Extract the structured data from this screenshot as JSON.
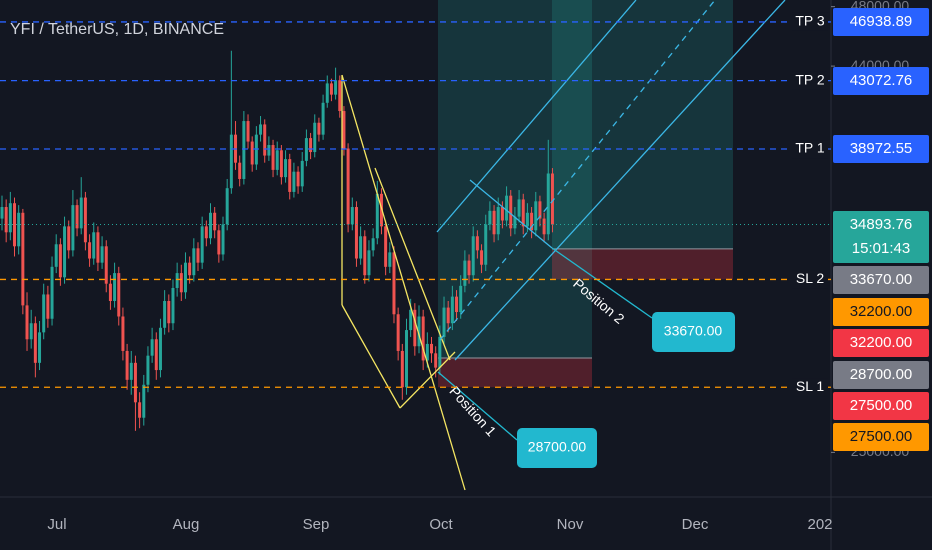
{
  "header": {
    "title": "YFI / TetherUS, 1D, BINANCE"
  },
  "chart_data": {
    "type": "candlestick",
    "log_scale": true,
    "ylim": [
      23660,
      48470
    ],
    "yticks": [
      {
        "value": 48000,
        "label": "48000.00"
      },
      {
        "value": 44000,
        "label": "44000.00"
      },
      {
        "value": 25000,
        "label": "25000.00"
      }
    ],
    "xticks": [
      "Jul",
      "Aug",
      "Sep",
      "Oct",
      "Nov",
      "Dec",
      "202"
    ],
    "up_color": "#26a69a",
    "down_color": "#ef5350",
    "candles": [
      [
        35200,
        36400,
        34600,
        35800
      ],
      [
        35800,
        36200,
        34000,
        34500
      ],
      [
        34500,
        36600,
        34100,
        36000
      ],
      [
        36000,
        36300,
        33300,
        33800
      ],
      [
        33800,
        35900,
        33400,
        35500
      ],
      [
        35500,
        35700,
        30600,
        31000
      ],
      [
        31000,
        31600,
        29000,
        29500
      ],
      [
        29500,
        30800,
        29100,
        30200
      ],
      [
        30200,
        30500,
        27900,
        28500
      ],
      [
        28500,
        30300,
        28200,
        29800
      ],
      [
        29800,
        32000,
        29500,
        31500
      ],
      [
        31500,
        31900,
        30000,
        30400
      ],
      [
        30400,
        33300,
        30100,
        32800
      ],
      [
        32800,
        34400,
        32500,
        33900
      ],
      [
        33900,
        34200,
        31900,
        32300
      ],
      [
        32300,
        35300,
        32000,
        34800
      ],
      [
        34800,
        35100,
        33200,
        33600
      ],
      [
        33600,
        36700,
        33300,
        35900
      ],
      [
        35900,
        36200,
        34300,
        34700
      ],
      [
        34700,
        37400,
        34400,
        36300
      ],
      [
        36300,
        36600,
        33600,
        34000
      ],
      [
        34000,
        34400,
        32800,
        33200
      ],
      [
        33200,
        35000,
        32900,
        34500
      ],
      [
        34500,
        34800,
        32600,
        33000
      ],
      [
        33000,
        34300,
        32700,
        33800
      ],
      [
        33800,
        34100,
        31600,
        32000
      ],
      [
        32000,
        32400,
        30800,
        31200
      ],
      [
        31200,
        33000,
        30900,
        32500
      ],
      [
        32500,
        32800,
        30100,
        30500
      ],
      [
        30500,
        30900,
        28600,
        29000
      ],
      [
        29000,
        29300,
        27400,
        27800
      ],
      [
        27800,
        29000,
        27200,
        28500
      ],
      [
        28500,
        28800,
        25800,
        26900
      ],
      [
        26900,
        27300,
        25900,
        26300
      ],
      [
        26300,
        28000,
        26000,
        27600
      ],
      [
        27600,
        29200,
        27300,
        28800
      ],
      [
        28800,
        30000,
        28500,
        29500
      ],
      [
        29500,
        29800,
        27800,
        28200
      ],
      [
        28200,
        30400,
        27900,
        30000
      ],
      [
        30000,
        31700,
        29700,
        31200
      ],
      [
        31200,
        31500,
        29800,
        30200
      ],
      [
        30200,
        32200,
        29900,
        31800
      ],
      [
        31800,
        33000,
        31400,
        32500
      ],
      [
        32500,
        32900,
        31200,
        31600
      ],
      [
        31600,
        33500,
        31300,
        33000
      ],
      [
        33000,
        33300,
        32000,
        32400
      ],
      [
        32400,
        34200,
        32100,
        33700
      ],
      [
        33700,
        34000,
        32600,
        33000
      ],
      [
        33000,
        35300,
        32700,
        34800
      ],
      [
        34800,
        35100,
        33800,
        34200
      ],
      [
        34200,
        36000,
        33900,
        35500
      ],
      [
        35500,
        35800,
        34200,
        34600
      ],
      [
        34600,
        34900,
        33000,
        33400
      ],
      [
        33400,
        35300,
        33100,
        34900
      ],
      [
        34900,
        37300,
        34600,
        36800
      ],
      [
        36800,
        45000,
        36500,
        39800
      ],
      [
        39800,
        40600,
        37800,
        38200
      ],
      [
        38200,
        38600,
        36900,
        37300
      ],
      [
        37300,
        41200,
        37000,
        40600
      ],
      [
        40600,
        41000,
        39000,
        39400
      ],
      [
        39400,
        39700,
        37700,
        38100
      ],
      [
        38100,
        40300,
        37800,
        39800
      ],
      [
        39800,
        40900,
        39400,
        40400
      ],
      [
        40400,
        40700,
        38200,
        38600
      ],
      [
        38600,
        39700,
        38300,
        39200
      ],
      [
        39200,
        39500,
        37400,
        37800
      ],
      [
        37800,
        39400,
        37500,
        38900
      ],
      [
        38900,
        39200,
        37000,
        37400
      ],
      [
        37400,
        38900,
        37100,
        38400
      ],
      [
        38400,
        38700,
        36200,
        36600
      ],
      [
        36600,
        38200,
        36300,
        37700
      ],
      [
        37700,
        38000,
        36500,
        36900
      ],
      [
        36900,
        38800,
        36600,
        38300
      ],
      [
        38300,
        40100,
        38000,
        39600
      ],
      [
        39600,
        39900,
        38400,
        38800
      ],
      [
        38800,
        41000,
        38500,
        40500
      ],
      [
        40500,
        40800,
        39400,
        39800
      ],
      [
        39800,
        42200,
        39500,
        41700
      ],
      [
        41700,
        43400,
        41400,
        42900
      ],
      [
        42900,
        43200,
        41800,
        42200
      ],
      [
        42200,
        43900,
        41900,
        43100
      ],
      [
        43100,
        43400,
        40800,
        41200
      ],
      [
        41200,
        41500,
        38600,
        39000
      ],
      [
        39000,
        39300,
        34500,
        34900
      ],
      [
        34900,
        36300,
        34600,
        35800
      ],
      [
        35800,
        36100,
        32800,
        33200
      ],
      [
        33200,
        34800,
        32900,
        34300
      ],
      [
        34300,
        34600,
        32000,
        32400
      ],
      [
        32400,
        34100,
        32100,
        33600
      ],
      [
        33600,
        34700,
        33300,
        34200
      ],
      [
        34200,
        37200,
        33900,
        36500
      ],
      [
        36500,
        36800,
        34400,
        34800
      ],
      [
        34800,
        35100,
        32400,
        32800
      ],
      [
        32800,
        34000,
        32500,
        33500
      ],
      [
        33500,
        33800,
        30200,
        30600
      ],
      [
        30600,
        30900,
        28600,
        29000
      ],
      [
        29000,
        29300,
        27000,
        27500
      ],
      [
        27500,
        30400,
        27200,
        29900
      ],
      [
        29900,
        31300,
        29600,
        30800
      ],
      [
        30800,
        31100,
        28800,
        29200
      ],
      [
        29200,
        31000,
        28900,
        30500
      ],
      [
        30500,
        30800,
        28200,
        28600
      ],
      [
        28600,
        29800,
        28300,
        29300
      ],
      [
        29300,
        29600,
        28500,
        28900
      ],
      [
        28900,
        29200,
        27900,
        28300
      ],
      [
        28300,
        30100,
        28000,
        29600
      ],
      [
        29600,
        31400,
        29300,
        30900
      ],
      [
        30900,
        31200,
        29800,
        30200
      ],
      [
        30200,
        31900,
        29900,
        31400
      ],
      [
        31400,
        31700,
        30300,
        30700
      ],
      [
        30700,
        32400,
        30400,
        31900
      ],
      [
        31900,
        33600,
        31600,
        33100
      ],
      [
        33100,
        33400,
        32000,
        32400
      ],
      [
        32400,
        34800,
        32100,
        34300
      ],
      [
        34300,
        34600,
        33200,
        33600
      ],
      [
        33600,
        33900,
        32500,
        32900
      ],
      [
        32900,
        35400,
        32600,
        34900
      ],
      [
        34900,
        36100,
        34600,
        35600
      ],
      [
        35600,
        35900,
        34000,
        34400
      ],
      [
        34400,
        36300,
        34100,
        35800
      ],
      [
        35800,
        36100,
        34700,
        35100
      ],
      [
        35100,
        36900,
        34800,
        36400
      ],
      [
        36400,
        36700,
        34300,
        34700
      ],
      [
        34700,
        35800,
        34400,
        35300
      ],
      [
        35300,
        36700,
        35000,
        36200
      ],
      [
        36200,
        36500,
        34400,
        34800
      ],
      [
        34800,
        36000,
        34500,
        35500
      ],
      [
        35500,
        35800,
        34200,
        34600
      ],
      [
        34600,
        36600,
        34300,
        36100
      ],
      [
        36100,
        36400,
        34800,
        35200
      ],
      [
        35200,
        35500,
        34000,
        34400
      ],
      [
        34400,
        39500,
        34100,
        37600
      ],
      [
        37600,
        37900,
        34500,
        34893.76
      ]
    ],
    "last": {
      "value": 34893.76,
      "countdown": "15:01:43",
      "color": "#26a69a"
    },
    "levels": [
      {
        "name": "TP 3",
        "value": 46938.89,
        "color": "#2962ff"
      },
      {
        "name": "TP 2",
        "value": 43072.76,
        "color": "#2962ff"
      },
      {
        "name": "TP 1",
        "value": 38972.55,
        "color": "#2962ff"
      },
      {
        "name": "SL 2",
        "value": 32200,
        "label": "32200.00",
        "color": "#ff9800"
      },
      {
        "name": "SL 1",
        "value": 27500,
        "label": "27500.00",
        "color": "#ff9800"
      }
    ],
    "positions": [
      {
        "name": "Position 1",
        "entry": 28700,
        "entry_label": "28700.00",
        "stop": 27500,
        "stop_label": "27500.00"
      },
      {
        "name": "Position 2",
        "entry": 33670,
        "entry_label": "33670.00",
        "stop": 32200,
        "stop_label": "32200.00"
      }
    ]
  }
}
